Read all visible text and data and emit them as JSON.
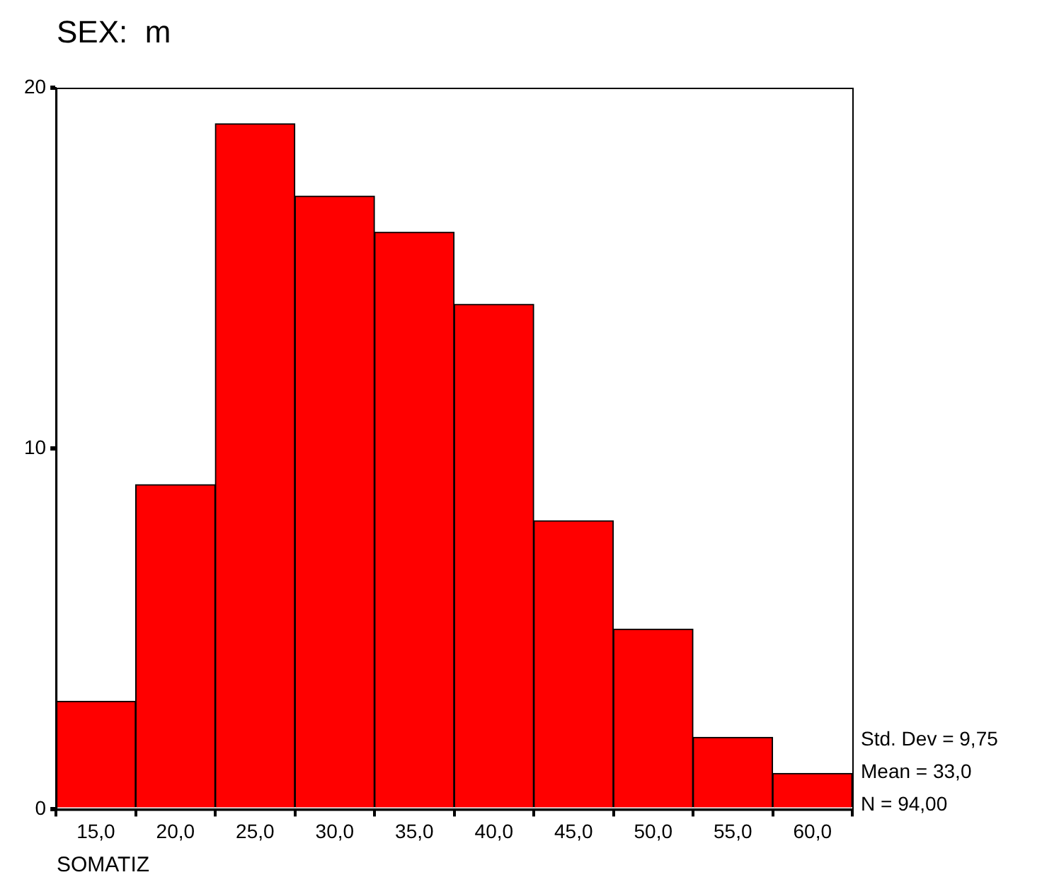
{
  "chart_data": {
    "type": "histogram",
    "title": "SEX:  m",
    "xlabel": "SOMATIZ",
    "bins": [
      12.5,
      17.5,
      22.5,
      27.5,
      32.5,
      37.5,
      42.5,
      47.5,
      52.5,
      57.5,
      62.5
    ],
    "values": [
      3,
      9,
      19,
      17,
      16,
      14,
      8,
      5,
      2,
      1
    ],
    "color": "#ff0000",
    "xlim": [
      12.5,
      62.5
    ],
    "xticks": [
      {
        "value": 15,
        "label": "15,0"
      },
      {
        "value": 20,
        "label": "20,0"
      },
      {
        "value": 25,
        "label": "25,0"
      },
      {
        "value": 30,
        "label": "30,0"
      },
      {
        "value": 35,
        "label": "35,0"
      },
      {
        "value": 40,
        "label": "40,0"
      },
      {
        "value": 45,
        "label": "45,0"
      },
      {
        "value": 50,
        "label": "50,0"
      },
      {
        "value": 55,
        "label": "55,0"
      },
      {
        "value": 60,
        "label": "60,0"
      }
    ],
    "ylim": [
      0,
      20
    ],
    "yticks": [
      0,
      10,
      20
    ],
    "grid": false,
    "legend": false,
    "annotations": [
      "Std. Dev = 9,75",
      "Mean = 33,0",
      "N = 94,00"
    ]
  }
}
